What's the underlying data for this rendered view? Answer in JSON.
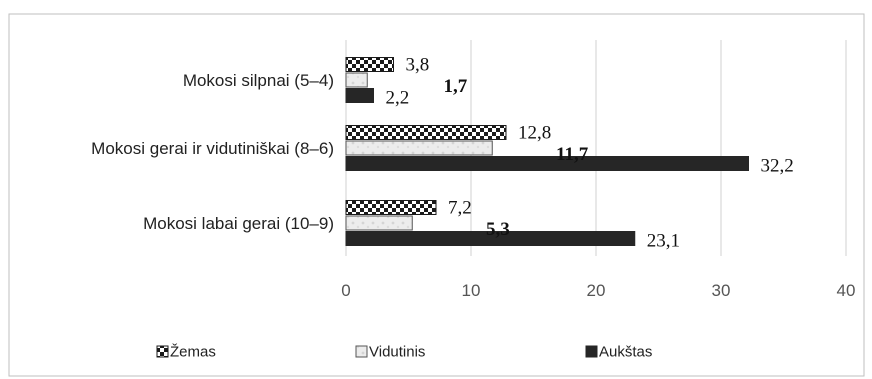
{
  "chart_data": {
    "type": "bar",
    "orientation": "horizontal",
    "categories": [
      "Mokosi silpnai (5–4)",
      "Mokosi gerai ir vidutiniškai (8–6)",
      "Mokosi labai gerai (10–9)"
    ],
    "series": [
      {
        "name": "Žemas",
        "values": [
          3.8,
          12.8,
          7.2
        ],
        "labels": [
          "3,8",
          "12,8",
          "7,2"
        ],
        "pattern": "checker",
        "label_bold": false
      },
      {
        "name": "Vidutinis",
        "values": [
          1.7,
          11.7,
          5.3
        ],
        "labels": [
          "1,7",
          "11,7",
          "5,3"
        ],
        "pattern": "light-gray",
        "label_bold": true
      },
      {
        "name": "Aukštas",
        "values": [
          2.2,
          32.2,
          23.1
        ],
        "labels": [
          "2,2",
          "32,2",
          "23,1"
        ],
        "pattern": "solid-dark",
        "label_bold": false
      }
    ],
    "xlim": [
      0,
      40
    ],
    "xticks": [
      "0",
      "10",
      "20",
      "30",
      "40"
    ],
    "grid": true,
    "legend_position": "bottom",
    "colors": {
      "dark": "#262626",
      "light": "#ececec",
      "checker_a": "#1a1a1a",
      "checker_b": "#ffffff",
      "grid": "#d9d9d9"
    }
  }
}
